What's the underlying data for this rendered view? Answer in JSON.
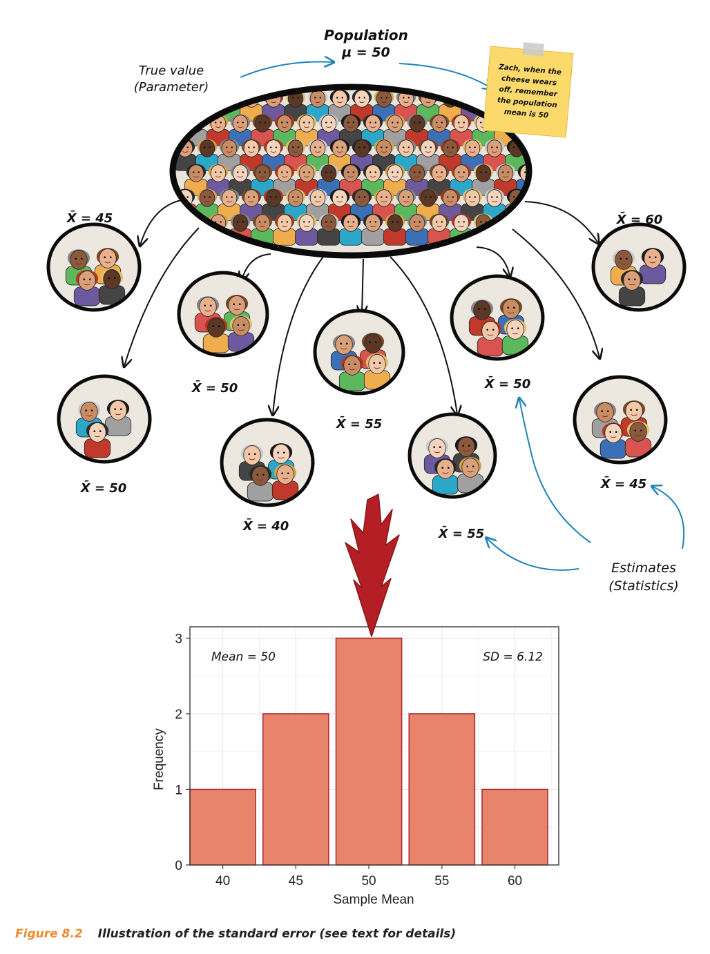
{
  "population": {
    "title": "Population",
    "mu_label": "μ = 50"
  },
  "true_value_label": [
    "True value",
    "(Parameter)"
  ],
  "sticky_note": [
    "Zach, when the",
    "cheese wears",
    "off, remember",
    "the population",
    "mean is 50"
  ],
  "samples": [
    {
      "label": "X̄ = 45"
    },
    {
      "label": "X̄ = 50"
    },
    {
      "label": "X̄ = 50"
    },
    {
      "label": "X̄ = 40"
    },
    {
      "label": "X̄ = 55"
    },
    {
      "label": "X̄ = 55"
    },
    {
      "label": "X̄ = 50"
    },
    {
      "label": "X̄ = 60"
    },
    {
      "label": "X̄ = 45"
    }
  ],
  "estimates_label": [
    "Estimates",
    "(Statistics)"
  ],
  "colors": {
    "bar_fill": "#e8836c",
    "bar_stroke": "#a8272d",
    "blue_arrow": "#1b84b8",
    "red_arrow": "#b31f24",
    "note": "#fbd96a",
    "caption_label": "#f08a2e"
  },
  "chart_data": {
    "type": "bar",
    "categories": [
      "40",
      "45",
      "50",
      "55",
      "60"
    ],
    "values": [
      1,
      2,
      3,
      2,
      1
    ],
    "xlabel": "Sample Mean",
    "ylabel": "Frequency",
    "ylim": [
      0,
      3.15
    ],
    "yticks": [
      0,
      1,
      2,
      3
    ],
    "annotations": {
      "mean": "Mean = 50",
      "sd": "SD = 6.12"
    },
    "grid": true
  },
  "caption": {
    "label": "Figure 8.2",
    "text": "Illustration of the standard error (see text for details)"
  }
}
